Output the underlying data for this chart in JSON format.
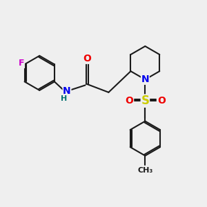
{
  "bg_color": "#efefef",
  "bond_color": "#1a1a1a",
  "bond_width": 1.5,
  "atom_colors": {
    "F": "#cc00cc",
    "N": "#0000ee",
    "H": "#007070",
    "O": "#ee0000",
    "S": "#cccc00",
    "C": "#1a1a1a"
  },
  "font_size": 9
}
